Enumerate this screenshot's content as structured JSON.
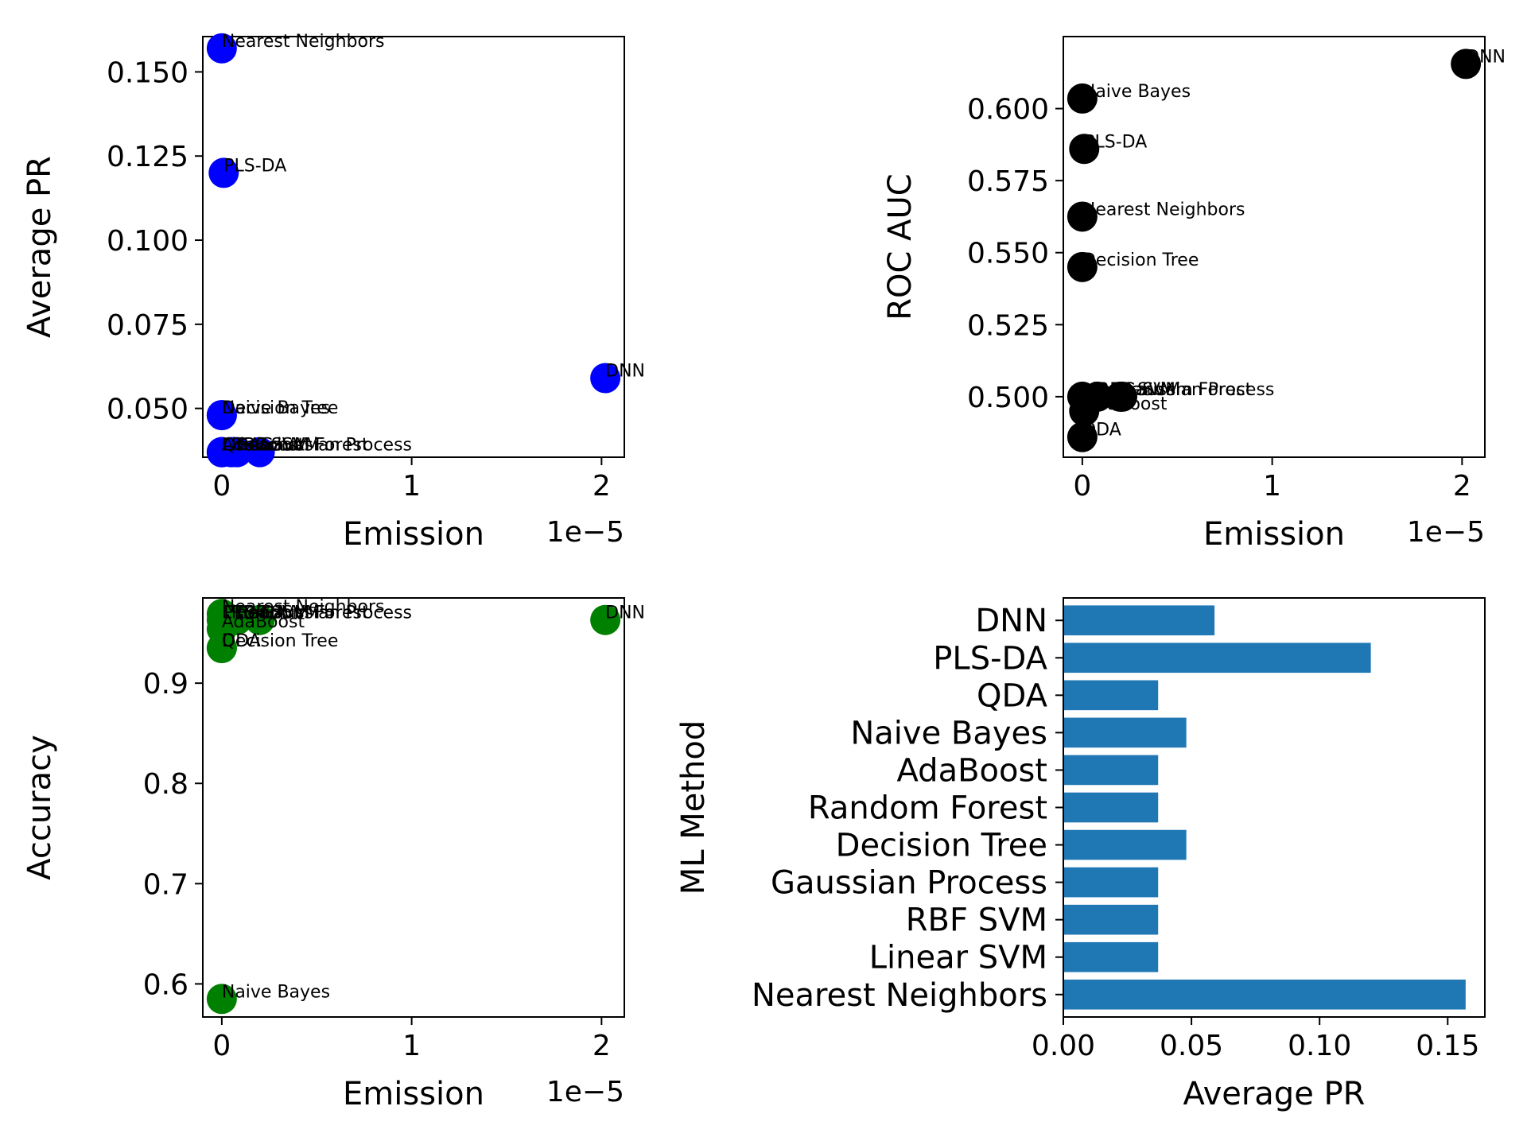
{
  "chart_data": [
    {
      "type": "scatter",
      "xlabel": "Emission",
      "ylabel": "Average PR",
      "x_offset_label": "1e−5",
      "x_scale": 1e-05,
      "xlim": [
        -0.1,
        2.12
      ],
      "ylim": [
        0.0355,
        0.1605
      ],
      "xticks": [
        0,
        1,
        2
      ],
      "yticks": [
        0.05,
        0.075,
        0.1,
        0.125,
        0.15
      ],
      "ytick_labels": [
        "0.050",
        "0.075",
        "0.100",
        "0.125",
        "0.150"
      ],
      "color": "#0000ff",
      "points": [
        {
          "label": "Nearest Neighbors",
          "x": 0.0,
          "y": 0.157
        },
        {
          "label": "Linear SVM",
          "x": 0.0,
          "y": 0.037
        },
        {
          "label": "RBF SVM",
          "x": 0.05,
          "y": 0.037
        },
        {
          "label": "Gaussian Process",
          "x": 0.2,
          "y": 0.037
        },
        {
          "label": "Decision Tree",
          "x": 0.0,
          "y": 0.048
        },
        {
          "label": "Random Forest",
          "x": 0.08,
          "y": 0.037
        },
        {
          "label": "AdaBoost",
          "x": 0.0,
          "y": 0.037
        },
        {
          "label": "Naive Bayes",
          "x": 0.0,
          "y": 0.048
        },
        {
          "label": "QDA",
          "x": 0.0,
          "y": 0.037
        },
        {
          "label": "PLS-DA",
          "x": 0.01,
          "y": 0.12
        },
        {
          "label": "DNN",
          "x": 2.02,
          "y": 0.059
        }
      ]
    },
    {
      "type": "scatter",
      "xlabel": "Emission",
      "ylabel": "ROC AUC",
      "x_offset_label": "1e−5",
      "x_scale": 1e-05,
      "xlim": [
        -0.1,
        2.12
      ],
      "ylim": [
        0.479,
        0.625
      ],
      "xticks": [
        0,
        1,
        2
      ],
      "yticks": [
        0.5,
        0.525,
        0.55,
        0.575,
        0.6
      ],
      "ytick_labels": [
        "0.500",
        "0.525",
        "0.550",
        "0.575",
        "0.600"
      ],
      "color": "#000000",
      "points": [
        {
          "label": "Nearest Neighbors",
          "x": 0.0,
          "y": 0.5625
        },
        {
          "label": "Linear SVM",
          "x": 0.0,
          "y": 0.5
        },
        {
          "label": "RBF SVM",
          "x": 0.08,
          "y": 0.5
        },
        {
          "label": "Gaussian Process",
          "x": 0.21,
          "y": 0.5
        },
        {
          "label": "Decision Tree",
          "x": 0.0,
          "y": 0.545
        },
        {
          "label": "Random Forest",
          "x": 0.2,
          "y": 0.5
        },
        {
          "label": "AdaBoost",
          "x": 0.01,
          "y": 0.495
        },
        {
          "label": "Naive Bayes",
          "x": 0.0,
          "y": 0.6035
        },
        {
          "label": "QDA",
          "x": 0.0,
          "y": 0.486
        },
        {
          "label": "PLS-DA",
          "x": 0.01,
          "y": 0.586
        },
        {
          "label": "DNN",
          "x": 2.02,
          "y": 0.6155
        }
      ]
    },
    {
      "type": "scatter",
      "xlabel": "Emission",
      "ylabel": "Accuracy",
      "x_offset_label": "1e−5",
      "x_scale": 1e-05,
      "xlim": [
        -0.1,
        2.12
      ],
      "ylim": [
        0.567,
        0.985
      ],
      "xticks": [
        0,
        1,
        2
      ],
      "yticks": [
        0.6,
        0.7,
        0.8,
        0.9
      ],
      "ytick_labels": [
        "0.6",
        "0.7",
        "0.8",
        "0.9"
      ],
      "color": "#008000",
      "points": [
        {
          "label": "Nearest Neighbors",
          "x": 0.0,
          "y": 0.969
        },
        {
          "label": "Linear SVM",
          "x": 0.0,
          "y": 0.963
        },
        {
          "label": "RBF SVM",
          "x": 0.05,
          "y": 0.963
        },
        {
          "label": "Gaussian Process",
          "x": 0.2,
          "y": 0.963
        },
        {
          "label": "Decision Tree",
          "x": 0.0,
          "y": 0.935
        },
        {
          "label": "Random Forest",
          "x": 0.08,
          "y": 0.963
        },
        {
          "label": "AdaBoost",
          "x": 0.0,
          "y": 0.954
        },
        {
          "label": "Naive Bayes",
          "x": 0.0,
          "y": 0.585
        },
        {
          "label": "QDA",
          "x": 0.0,
          "y": 0.935
        },
        {
          "label": "PLS-DA",
          "x": 0.01,
          "y": 0.963
        },
        {
          "label": "DNN",
          "x": 2.02,
          "y": 0.963
        }
      ]
    },
    {
      "type": "bar",
      "orientation": "horizontal",
      "xlabel": "Average PR",
      "ylabel": "ML Method",
      "xlim": [
        0.0,
        0.1645
      ],
      "xticks": [
        0.0,
        0.05,
        0.1,
        0.15
      ],
      "xtick_labels": [
        "0.00",
        "0.05",
        "0.10",
        "0.15"
      ],
      "color": "#1f77b4",
      "categories": [
        "Nearest Neighbors",
        "Linear SVM",
        "RBF SVM",
        "Gaussian Process",
        "Decision Tree",
        "Random Forest",
        "AdaBoost",
        "Naive Bayes",
        "QDA",
        "PLS-DA",
        "DNN"
      ],
      "values": [
        0.157,
        0.037,
        0.037,
        0.037,
        0.048,
        0.037,
        0.037,
        0.048,
        0.037,
        0.12,
        0.059
      ]
    }
  ]
}
